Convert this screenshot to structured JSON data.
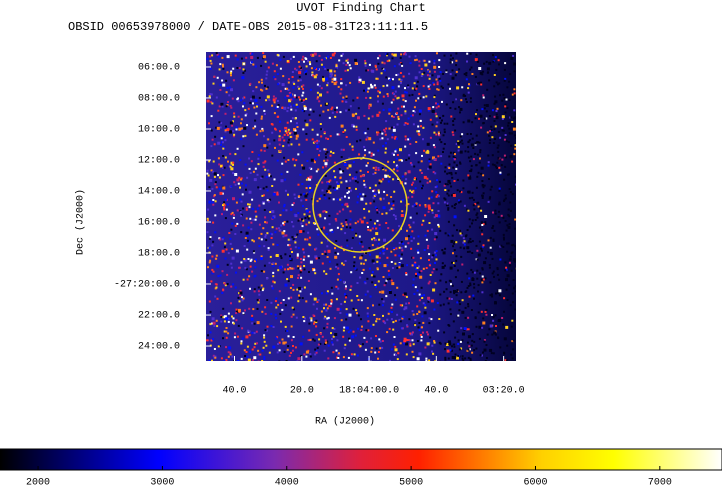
{
  "chart_data": {
    "type": "image",
    "title": "UVOT Finding Chart",
    "subtitle": "OBSID 00653978000 / DATE-OBS 2015-08-31T23:11:11.5",
    "x_label": "RA (J2000)",
    "y_label": "Dec (J2000)",
    "xlim": [
      271.202,
      270.818
    ],
    "xticks": [
      {
        "value": 271.1667,
        "label": "40.0"
      },
      {
        "value": 271.0833,
        "label": "20.0"
      },
      {
        "value": 271.0,
        "label": "18:04:00.0"
      },
      {
        "value": 270.9167,
        "label": "40.0"
      },
      {
        "value": 270.8333,
        "label": "03:20.0"
      }
    ],
    "ylim": [
      -27.4161,
      -27.0839
    ],
    "yticks": [
      {
        "value": -27.1,
        "label": "06:00.0"
      },
      {
        "value": -27.1333,
        "label": "08:00.0"
      },
      {
        "value": -27.1667,
        "label": "10:00.0"
      },
      {
        "value": -27.2,
        "label": "12:00.0"
      },
      {
        "value": -27.2333,
        "label": "14:00.0"
      },
      {
        "value": -27.2667,
        "label": "16:00.0"
      },
      {
        "value": -27.3,
        "label": "18:00.0"
      },
      {
        "value": -27.3333,
        "label": "-27:20:00.0"
      },
      {
        "value": -27.3667,
        "label": "22:00.0"
      },
      {
        "value": -27.4,
        "label": "24:00.0"
      }
    ],
    "colorbar_lim": [
      1694,
      7500
    ],
    "colorbar_ticks": [
      2000,
      3000,
      4000,
      5000,
      6000,
      7000
    ]
  }
}
